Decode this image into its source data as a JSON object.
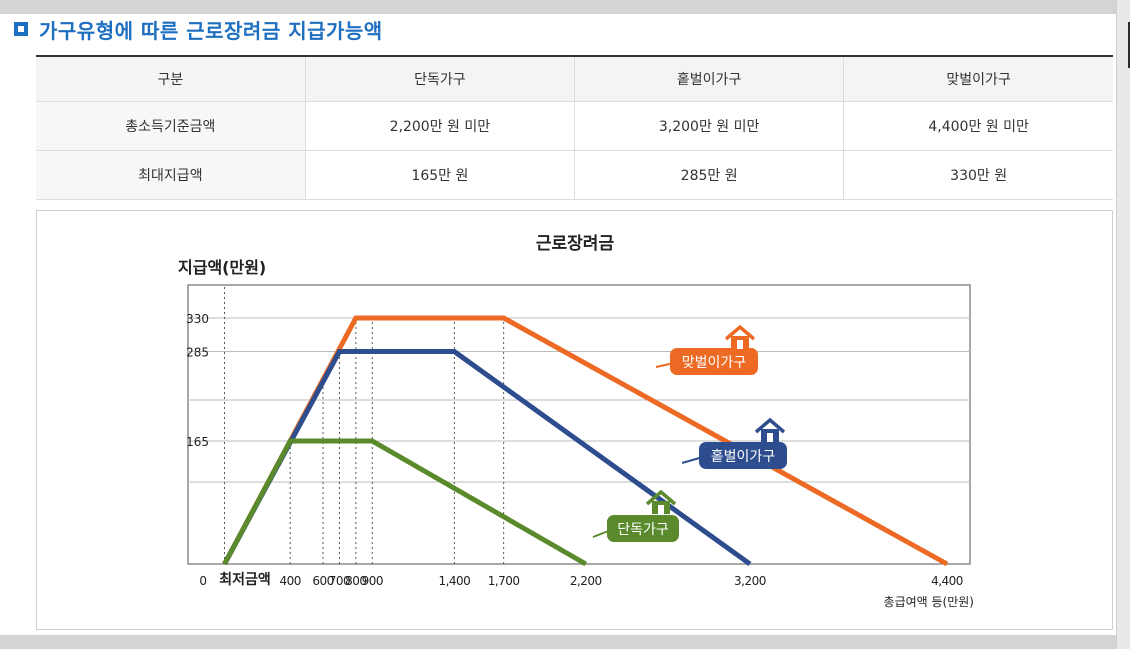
{
  "heading": "가구유형에 따른 근로장려금 지급가능액",
  "table": {
    "headers": [
      "구분",
      "단독가구",
      "홑벌이가구",
      "맞벌이가구"
    ],
    "rows": [
      [
        "총소득기준금액",
        "2,200만 원 미만",
        "3,200만 원 미만",
        "4,400만 원 미만"
      ],
      [
        "최대지급액",
        "165만 원",
        "285만 원",
        "330만 원"
      ]
    ]
  },
  "chart_data": {
    "type": "line",
    "title": "근로장려금",
    "ylabel": "지급액(만원)",
    "xlabel": "총급여액 등(만원)",
    "x_start_label": "최저금액",
    "ylim": [
      0,
      330
    ],
    "xlim": [
      0,
      4400
    ],
    "y_ticks": [
      {
        "value": 0,
        "label": "0"
      },
      {
        "value": 165,
        "label": "165"
      },
      {
        "value": 285,
        "label": "285"
      },
      {
        "value": 330,
        "label": "330"
      }
    ],
    "x_ticks": [
      {
        "value": 400,
        "label": "400"
      },
      {
        "value": 600,
        "label": "600"
      },
      {
        "value": 700,
        "label": "700"
      },
      {
        "value": 800,
        "label": "800"
      },
      {
        "value": 900,
        "label": "900"
      },
      {
        "value": 1400,
        "label": "1,400"
      },
      {
        "value": 1700,
        "label": "1,700"
      },
      {
        "value": 2200,
        "label": "2,200"
      },
      {
        "value": 3200,
        "label": "3,200"
      },
      {
        "value": 4400,
        "label": "4,400"
      }
    ],
    "grid": true,
    "series": [
      {
        "name": "맞벌이가구",
        "color": "#ec6a24",
        "icon": "house-icon",
        "points": [
          [
            0,
            0
          ],
          [
            800,
            330
          ],
          [
            1700,
            330
          ],
          [
            4400,
            0
          ]
        ]
      },
      {
        "name": "홑벌이가구",
        "color": "#2e4d8e",
        "icon": "house-icon",
        "points": [
          [
            0,
            0
          ],
          [
            700,
            285
          ],
          [
            1400,
            285
          ],
          [
            3200,
            0
          ]
        ]
      },
      {
        "name": "단독가구",
        "color": "#5b8a2d",
        "icon": "house-icon",
        "points": [
          [
            0,
            0
          ],
          [
            400,
            165
          ],
          [
            900,
            165
          ],
          [
            2200,
            0
          ]
        ]
      }
    ]
  }
}
